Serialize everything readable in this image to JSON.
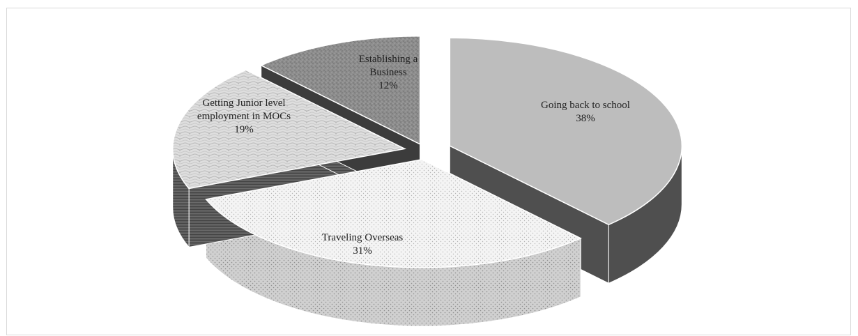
{
  "chart_data": {
    "type": "pie",
    "style": "3d-exploded",
    "categories": [
      "Going back to school",
      "Traveling Overseas",
      "Getting Junior level employment in MOCs",
      "Establishing a Business"
    ],
    "values": [
      38,
      31,
      19,
      12
    ],
    "value_format": "percent",
    "labels": [
      {
        "lines": [
          "Going back to school",
          "38%"
        ]
      },
      {
        "lines": [
          "Traveling Overseas",
          "31%"
        ]
      },
      {
        "lines": [
          "Getting Junior level",
          "employment in MOCs",
          "19%"
        ]
      },
      {
        "lines": [
          "Establishing a",
          "Business",
          "12%"
        ]
      }
    ],
    "fills": [
      "#bdbdbd",
      "#f4f4f4",
      "#dcdcdc",
      "#8a8a8a"
    ],
    "side_colors": [
      "#4d4d4d",
      "#a9a9a9",
      "#555555",
      "#3a3a3a"
    ],
    "title": "",
    "legend": "none"
  }
}
